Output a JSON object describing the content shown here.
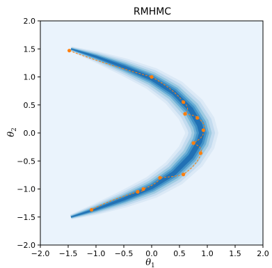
{
  "chart_data": {
    "type": "scatter",
    "title": "RMHMC",
    "xlabel": "θ",
    "xlabel_sub": "1",
    "ylabel": "θ",
    "ylabel_sub": "2",
    "xlim": [
      -2.0,
      2.0
    ],
    "ylim": [
      -2.0,
      2.0
    ],
    "xticks": [
      -2.0,
      -1.5,
      -1.0,
      -0.5,
      0.0,
      0.5,
      1.0,
      1.5,
      2.0
    ],
    "yticks": [
      -2.0,
      -1.5,
      -1.0,
      -0.5,
      0.0,
      0.5,
      1.0,
      1.5,
      2.0
    ],
    "xtick_labels": [
      "−2.0",
      "−1.5",
      "−1.0",
      "−0.5",
      "0.0",
      "0.5",
      "1.0",
      "1.5",
      "2.0"
    ],
    "ytick_labels": [
      "−2.0",
      "−1.5",
      "−1.0",
      "−0.5",
      "0.0",
      "0.5",
      "1.0",
      "1.5",
      "2.0"
    ],
    "grid": false,
    "background_color": "#eaf3fc",
    "density": {
      "description_levels": 6,
      "colors": [
        "#dbe9f6",
        "#c3dbef",
        "#9ecae1",
        "#6baed6",
        "#4292c6",
        "#2171b5"
      ],
      "spine_points": [
        [
          -1.45,
          1.5
        ],
        [
          -1.0,
          1.36
        ],
        [
          -0.5,
          1.18
        ],
        [
          0.0,
          0.97
        ],
        [
          0.4,
          0.72
        ],
        [
          0.7,
          0.42
        ],
        [
          0.86,
          0.15
        ],
        [
          0.9,
          0.0
        ],
        [
          0.86,
          -0.15
        ],
        [
          0.7,
          -0.42
        ],
        [
          0.4,
          -0.72
        ],
        [
          0.0,
          -0.97
        ],
        [
          -0.5,
          -1.18
        ],
        [
          -1.0,
          -1.36
        ],
        [
          -1.45,
          -1.5
        ]
      ]
    },
    "series": [
      {
        "color": "#ff7f0e",
        "points": [
          [
            -1.48,
            1.47
          ],
          [
            0.0,
            1.0
          ],
          [
            0.57,
            0.55
          ],
          [
            0.6,
            0.34
          ],
          [
            0.82,
            0.27
          ],
          [
            0.93,
            0.05
          ],
          [
            0.75,
            -0.18
          ],
          [
            0.88,
            -0.36
          ],
          [
            0.57,
            -0.74
          ],
          [
            0.15,
            -0.8
          ],
          [
            -0.15,
            -1.0
          ],
          [
            -0.25,
            -1.05
          ],
          [
            -1.08,
            -1.37
          ]
        ]
      }
    ]
  }
}
